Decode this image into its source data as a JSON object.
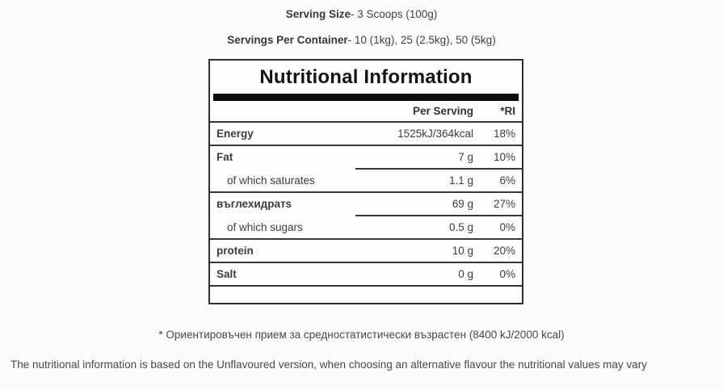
{
  "page": {
    "serving_size_label": "Serving Size",
    "serving_size_value": "- 3 Scoops (100g)",
    "servings_per_container_label": "Servings Per Container",
    "servings_per_container_value": "- 10 (1kg), 25 (2.5kg), 50 (5kg)",
    "footnote": "* Ориентировъчен прием за средностатистически възрастен (8400 kJ/2000 kcal)",
    "disclaimer": "The nutritional information is based on the Unflavoured version, when choosing an alternative flavour the nutritional values may vary"
  },
  "table": {
    "title": "Nutritional Information",
    "columns": {
      "per_serving": "Per Serving",
      "ri": "*RI"
    },
    "rows": [
      {
        "label": "Energy",
        "value": "1525kJ/364kcal",
        "ri": "18%"
      },
      {
        "label": "Fat",
        "value": "7 g",
        "ri": "10%"
      },
      {
        "label": "of which saturates",
        "value": "1.1 g",
        "ri": "6%"
      },
      {
        "label": "въглехидратs",
        "value": "69 g",
        "ri": "27%"
      },
      {
        "label": "of which sugars",
        "value": "0.5 g",
        "ri": "0%"
      },
      {
        "label": "protein",
        "value": "10 g",
        "ri": "20%"
      },
      {
        "label": "Salt",
        "value": "0 g",
        "ri": "0%"
      }
    ],
    "colors": {
      "border": "#373737",
      "bar": "#0d0d0d",
      "text": "#3d4248",
      "background": "#fcfcfc"
    }
  }
}
